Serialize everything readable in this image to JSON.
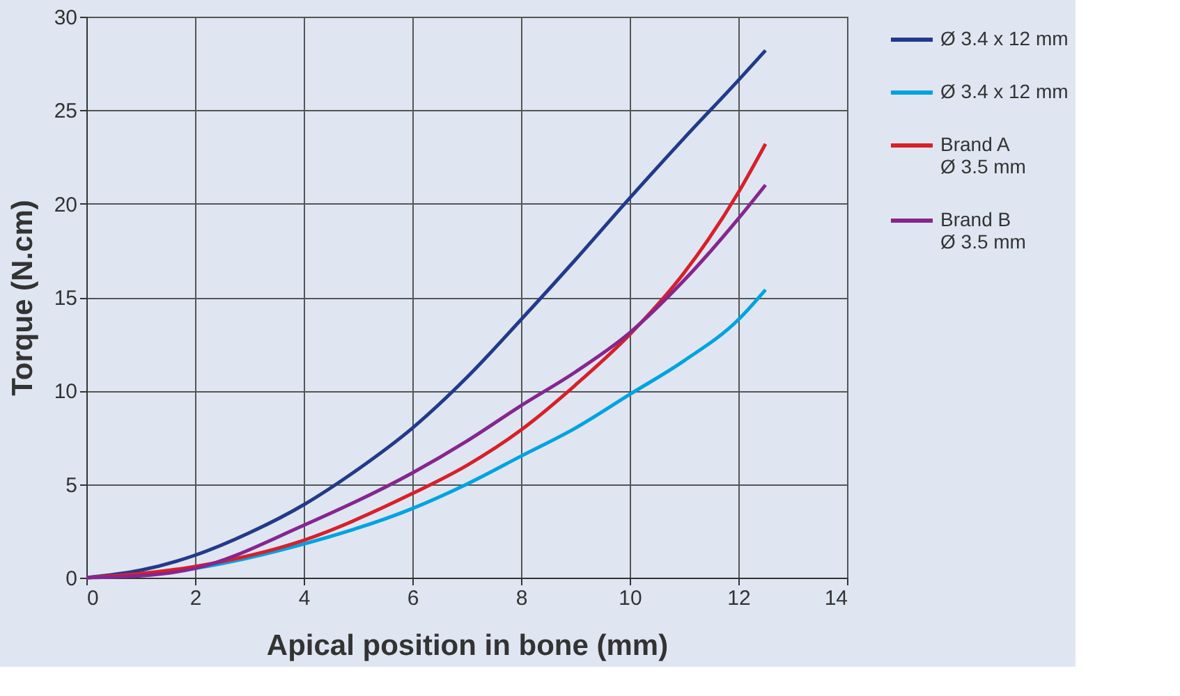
{
  "chart_data": {
    "type": "line",
    "xlabel": "Apical position in bone (mm)",
    "ylabel": "Torque (N.cm)",
    "xlim": [
      0,
      14
    ],
    "xticks": [
      0,
      2,
      4,
      6,
      8,
      10,
      12,
      14
    ],
    "ylim": [
      0,
      30
    ],
    "yticks": [
      0,
      5,
      10,
      15,
      20,
      25,
      30
    ],
    "grid": true,
    "legend": "right",
    "marker": "none",
    "line_style": "solid",
    "series": [
      {
        "name": "Ø 3.4 x 12 mm",
        "color": "#233a8a",
        "x": [
          0,
          1,
          2,
          3,
          4,
          5,
          6,
          7,
          8,
          9,
          10,
          11,
          12,
          12.5
        ],
        "values": [
          0,
          0.4,
          1.2,
          2.4,
          3.9,
          5.8,
          8.0,
          10.7,
          13.8,
          17.0,
          20.3,
          23.5,
          26.6,
          28.2
        ]
      },
      {
        "name": "Ø 3.4 x 12 mm",
        "color": "#00a3e0",
        "x": [
          0,
          2,
          4,
          6,
          7,
          8,
          9,
          10,
          11,
          12,
          12.5
        ],
        "values": [
          0,
          0.5,
          1.8,
          3.7,
          5.0,
          6.5,
          8.0,
          9.8,
          11.6,
          13.8,
          15.4
        ]
      },
      {
        "name": "Brand A\nØ 3.5 mm",
        "color": "#d7202a",
        "x": [
          0,
          2,
          4,
          6,
          7,
          8,
          9,
          10,
          11,
          12,
          12.5
        ],
        "values": [
          0,
          0.6,
          2.0,
          4.5,
          6.0,
          7.9,
          10.3,
          13.0,
          16.3,
          20.6,
          23.2
        ]
      },
      {
        "name": "Brand B\nØ 3.5 mm",
        "color": "#86268f",
        "x": [
          0,
          1,
          2,
          4,
          6,
          7,
          8,
          9,
          10,
          11,
          12,
          12.5
        ],
        "values": [
          0,
          0.1,
          0.5,
          2.8,
          5.6,
          7.3,
          9.2,
          11.0,
          13.1,
          15.9,
          19.2,
          21.0
        ]
      }
    ]
  }
}
